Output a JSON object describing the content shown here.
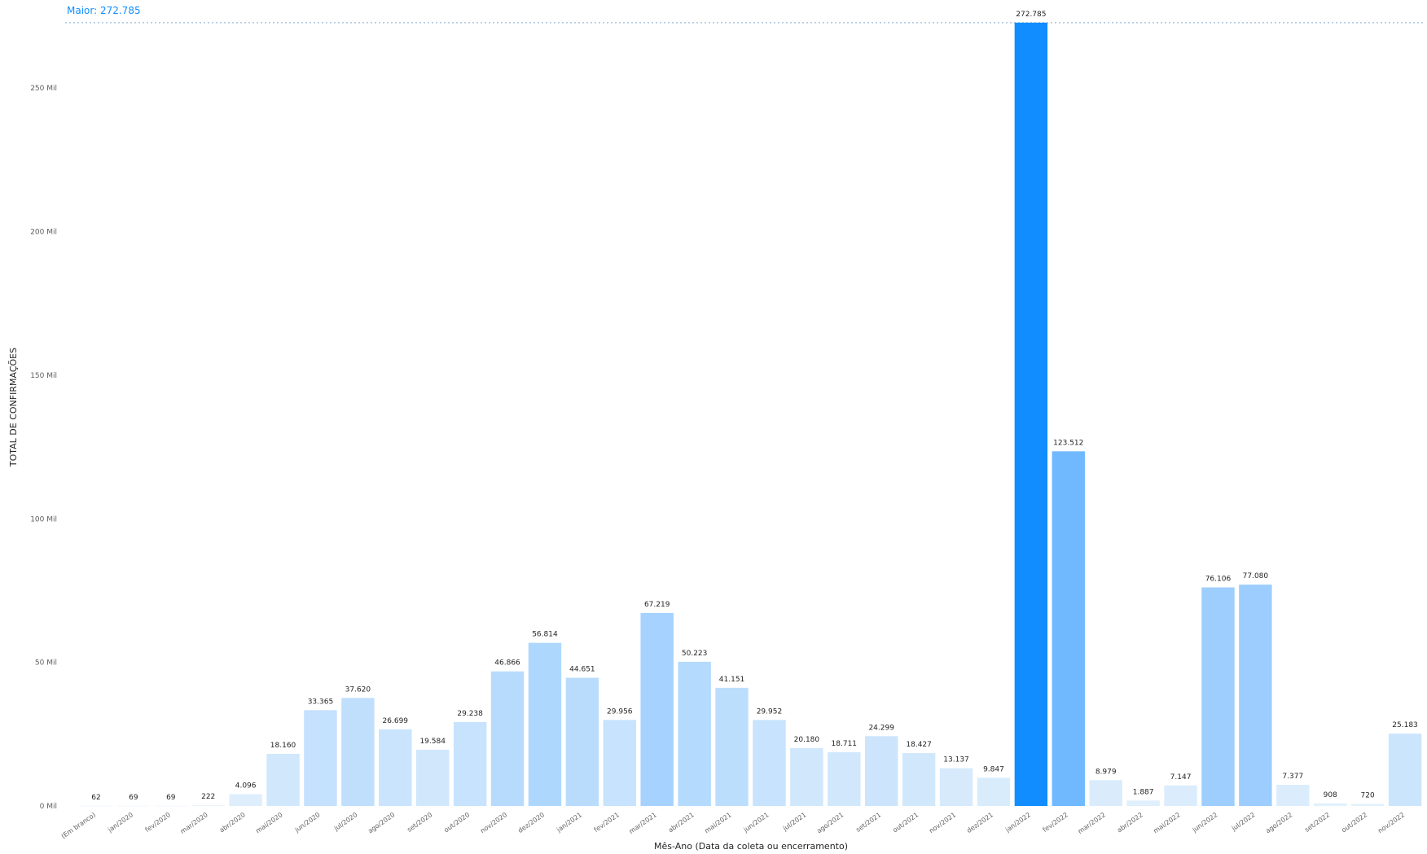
{
  "chart_data": {
    "type": "bar",
    "reference_line_label": "Maior: 272.785",
    "ylabel": "TOTAL DE CONFIRMAÇÕES",
    "xlabel": "Mês-Ano (Data da coleta ou encerramento)",
    "ylim": [
      0,
      275000
    ],
    "yticks": [
      {
        "value": 0,
        "label": "0 Mil"
      },
      {
        "value": 50000,
        "label": "50 Mil"
      },
      {
        "value": 100000,
        "label": "100 Mil"
      },
      {
        "value": 150000,
        "label": "150 Mil"
      },
      {
        "value": 200000,
        "label": "200 Mil"
      },
      {
        "value": 250000,
        "label": "250 Mil"
      }
    ],
    "grid": false,
    "categories": [
      "(Em branco)",
      "jan/2020",
      "fev/2020",
      "mar/2020",
      "abr/2020",
      "mai/2020",
      "jun/2020",
      "jul/2020",
      "ago/2020",
      "set/2020",
      "out/2020",
      "nov/2020",
      "dez/2020",
      "jan/2021",
      "fev/2021",
      "mar/2021",
      "abr/2021",
      "mai/2021",
      "jun/2021",
      "jul/2021",
      "ago/2021",
      "set/2021",
      "out/2021",
      "nov/2021",
      "dez/2021",
      "jan/2022",
      "fev/2022",
      "mar/2022",
      "abr/2022",
      "mai/2022",
      "jun/2022",
      "jul/2022",
      "ago/2022",
      "set/2022",
      "out/2022",
      "nov/2022"
    ],
    "values": [
      62,
      69,
      69,
      222,
      4096,
      18160,
      33365,
      37620,
      26699,
      19584,
      29238,
      46866,
      56814,
      44651,
      29956,
      67219,
      50223,
      41151,
      29952,
      20180,
      18711,
      24299,
      18427,
      13137,
      9847,
      272785,
      123512,
      8979,
      1887,
      7147,
      76106,
      77080,
      7377,
      908,
      720,
      25183
    ],
    "value_labels": [
      "62",
      "69",
      "69",
      "222",
      "4.096",
      "18.160",
      "33.365",
      "37.620",
      "26.699",
      "19.584",
      "29.238",
      "46.866",
      "56.814",
      "44.651",
      "29.956",
      "67.219",
      "50.223",
      "41.151",
      "29.952",
      "20.180",
      "18.711",
      "24.299",
      "18.427",
      "13.137",
      "9.847",
      "272.785",
      "123.512",
      "8.979",
      "1.887",
      "7.147",
      "76.106",
      "77.080",
      "7.377",
      "908",
      "720",
      "25.183"
    ],
    "colors": {
      "max": "#118dff",
      "light": "#e2f0fc",
      "dark": "#70b8ff",
      "reference_line": "#a9c5e0",
      "reference_label": "#118dff"
    }
  }
}
